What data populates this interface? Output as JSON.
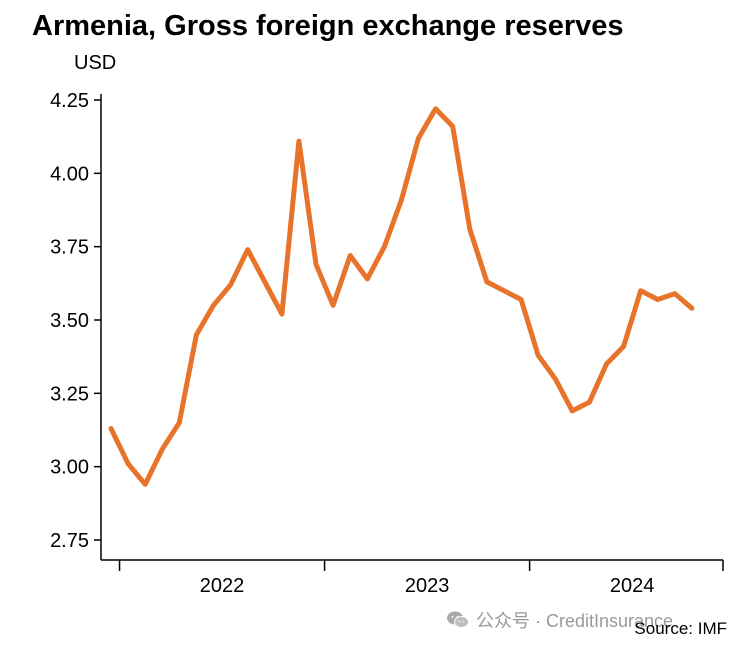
{
  "chart_data": {
    "type": "line",
    "title": "Armenia, Gross foreign exchange reserves",
    "ylabel": "USD",
    "xlabel": "",
    "ylim": [
      2.75,
      4.25
    ],
    "y_ticks": [
      "2.75",
      "3.00",
      "3.25",
      "3.50",
      "3.75",
      "4.00",
      "4.25"
    ],
    "x_tick_labels": [
      "2022",
      "2023",
      "2024"
    ],
    "x_range": [
      "2021-12",
      "2024-11"
    ],
    "series": [
      {
        "color": "#e8732a",
        "points": [
          {
            "x": "2021-12",
            "y": 3.13
          },
          {
            "x": "2022-01",
            "y": 3.01
          },
          {
            "x": "2022-02",
            "y": 2.94
          },
          {
            "x": "2022-03",
            "y": 3.06
          },
          {
            "x": "2022-04",
            "y": 3.15
          },
          {
            "x": "2022-05",
            "y": 3.45
          },
          {
            "x": "2022-06",
            "y": 3.55
          },
          {
            "x": "2022-07",
            "y": 3.62
          },
          {
            "x": "2022-08",
            "y": 3.74
          },
          {
            "x": "2022-09",
            "y": 3.63
          },
          {
            "x": "2022-10",
            "y": 3.52
          },
          {
            "x": "2022-11",
            "y": 4.11
          },
          {
            "x": "2022-12",
            "y": 3.69
          },
          {
            "x": "2023-01",
            "y": 3.55
          },
          {
            "x": "2023-02",
            "y": 3.72
          },
          {
            "x": "2023-03",
            "y": 3.64
          },
          {
            "x": "2023-04",
            "y": 3.75
          },
          {
            "x": "2023-05",
            "y": 3.91
          },
          {
            "x": "2023-06",
            "y": 4.12
          },
          {
            "x": "2023-07",
            "y": 4.22
          },
          {
            "x": "2023-08",
            "y": 4.16
          },
          {
            "x": "2023-09",
            "y": 3.81
          },
          {
            "x": "2023-10",
            "y": 3.63
          },
          {
            "x": "2023-11",
            "y": 3.6
          },
          {
            "x": "2023-12",
            "y": 3.57
          },
          {
            "x": "2024-01",
            "y": 3.38
          },
          {
            "x": "2024-02",
            "y": 3.3
          },
          {
            "x": "2024-03",
            "y": 3.19
          },
          {
            "x": "2024-04",
            "y": 3.22
          },
          {
            "x": "2024-05",
            "y": 3.35
          },
          {
            "x": "2024-06",
            "y": 3.41
          },
          {
            "x": "2024-07",
            "y": 3.6
          },
          {
            "x": "2024-08",
            "y": 3.57
          },
          {
            "x": "2024-09",
            "y": 3.59
          },
          {
            "x": "2024-10",
            "y": 3.54
          }
        ]
      }
    ],
    "grid": false,
    "legend": "none"
  },
  "source": "Source: IMF",
  "watermark": {
    "icon": "wechat-icon",
    "text": "公众号 · CreditInsurance"
  }
}
